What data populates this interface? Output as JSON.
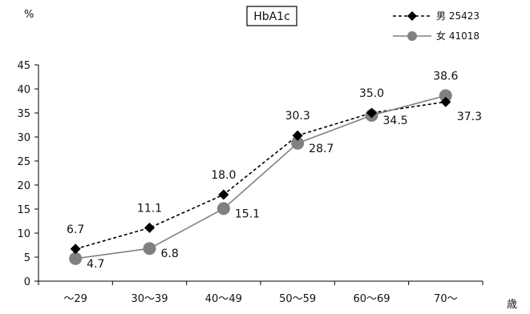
{
  "chart_data": {
    "type": "line",
    "title": "HbA1c",
    "ylabel": "%",
    "xlabel": "歳",
    "ylim": [
      0,
      45
    ],
    "yticks": [
      0,
      5,
      10,
      15,
      20,
      25,
      30,
      35,
      40,
      45
    ],
    "categories": [
      "～29",
      "30～39",
      "40～49",
      "50～59",
      "60～69",
      "70～"
    ],
    "legend_position": "top-right",
    "grid": false,
    "series": [
      {
        "name": "男 25423",
        "values": [
          6.7,
          11.1,
          18.0,
          30.3,
          35.0,
          37.3
        ],
        "labels": [
          "6.7",
          "11.1",
          "18.0",
          "30.3",
          "35.0",
          "37.3"
        ],
        "color": "#000000",
        "line_style": "dashed",
        "marker": "diamond"
      },
      {
        "name": "女 41018",
        "values": [
          4.7,
          6.8,
          15.1,
          28.7,
          34.5,
          38.6
        ],
        "labels": [
          "4.7",
          "6.8",
          "15.1",
          "28.7",
          "34.5",
          "38.6"
        ],
        "color": "#808080",
        "line_style": "solid",
        "marker": "circle"
      }
    ]
  }
}
